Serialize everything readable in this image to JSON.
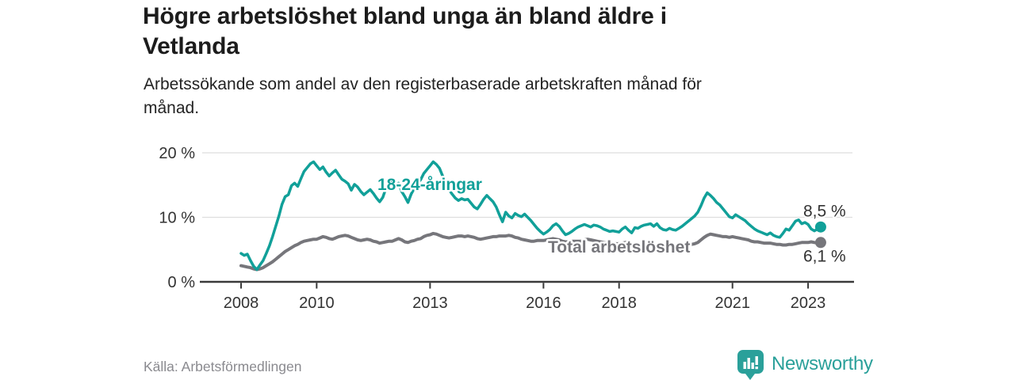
{
  "header": {
    "title": "Högre arbetslöshet bland unga än bland äldre i\nVetlanda",
    "subtitle": "Arbetssökande som andel av den registerbaserade arbetskraften månad för\nmånad."
  },
  "footer": {
    "source": "Källa: Arbetsförmedlingen",
    "brand": "Newsworthy"
  },
  "colors": {
    "young_line": "#11A099",
    "total_line": "#76767B",
    "brand_teal": "#2AA09A",
    "axis": "#3A3A3A",
    "grid": "#DEDEDE",
    "tick_text": "#333333",
    "value_label_text": "#333333",
    "source_text": "#8A8A8F",
    "title_text": "#1C1C1C"
  },
  "chart_data": {
    "type": "line",
    "title": "Högre arbetslöshet bland unga än bland äldre i Vetlanda",
    "subtitle": "Arbetssökande som andel av den registerbaserade arbetskraften månad för månad.",
    "source": "Källa: Arbetsförmedlingen",
    "x_unit": "month",
    "x_start": "2008-01",
    "x_end": "2023-05",
    "x_tick_years": [
      2008,
      2010,
      2013,
      2016,
      2018,
      2021,
      2023
    ],
    "y_ticks": [
      {
        "value": 0,
        "label": "0 %"
      },
      {
        "value": 10,
        "label": "10 %"
      },
      {
        "value": 20,
        "label": "20 %"
      }
    ],
    "ylim": [
      0,
      20
    ],
    "grid": "horizontal",
    "legend": "inline-labels",
    "series": [
      {
        "name": "18-24-åringar",
        "color": "#11A099",
        "end_value": 8.5,
        "end_label": "8,5 %",
        "values": [
          4.4,
          4.1,
          4.3,
          3.3,
          2.4,
          1.9,
          2.6,
          3.3,
          4.4,
          5.6,
          7.0,
          8.6,
          10.2,
          12.0,
          13.2,
          13.5,
          14.9,
          15.3,
          14.8,
          16.0,
          17.1,
          17.7,
          18.3,
          18.6,
          18.0,
          17.4,
          17.8,
          17.0,
          16.4,
          16.9,
          17.3,
          16.6,
          15.9,
          15.6,
          15.2,
          14.2,
          15.1,
          14.7,
          14.0,
          13.5,
          13.9,
          14.3,
          13.7,
          13.0,
          12.4,
          13.1,
          14.5,
          15.3,
          15.6,
          15.0,
          15.3,
          14.0,
          13.2,
          12.3,
          13.6,
          14.5,
          15.3,
          15.8,
          16.8,
          17.4,
          18.0,
          18.6,
          18.2,
          17.6,
          16.4,
          15.2,
          14.3,
          13.6,
          13.0,
          12.6,
          12.9,
          12.7,
          12.8,
          12.2,
          11.6,
          11.3,
          12.0,
          12.8,
          13.4,
          12.9,
          12.4,
          11.6,
          10.4,
          9.3,
          10.8,
          10.2,
          9.9,
          10.6,
          10.3,
          10.1,
          10.5,
          10.0,
          9.5,
          8.9,
          8.3,
          7.8,
          7.4,
          7.7,
          8.1,
          8.7,
          9.0,
          8.6,
          7.9,
          7.3,
          7.5,
          7.8,
          8.2,
          8.5,
          8.7,
          8.9,
          8.7,
          8.5,
          8.8,
          8.7,
          8.5,
          8.2,
          8.0,
          7.8,
          7.9,
          7.8,
          7.7,
          8.2,
          8.5,
          8.0,
          7.6,
          8.4,
          8.3,
          8.6,
          8.8,
          8.9,
          9.0,
          8.6,
          9.0,
          8.4,
          8.1,
          8.0,
          8.3,
          8.1,
          8.0,
          8.3,
          8.6,
          9.0,
          9.4,
          9.8,
          10.2,
          10.8,
          11.8,
          13.0,
          13.8,
          13.4,
          12.9,
          12.3,
          11.9,
          11.3,
          10.7,
          10.1,
          9.9,
          10.4,
          10.1,
          9.8,
          9.5,
          9.0,
          8.6,
          8.2,
          7.9,
          7.7,
          7.5,
          7.3,
          7.6,
          7.2,
          7.0,
          6.9,
          7.5,
          8.2,
          8.0,
          8.7,
          9.4,
          9.6,
          9.0,
          9.2,
          8.9,
          8.2,
          7.9,
          8.2,
          8.5
        ]
      },
      {
        "name": "Total arbetslöshet",
        "color": "#76767B",
        "end_value": 6.1,
        "end_label": "6,1 %",
        "values": [
          2.5,
          2.4,
          2.3,
          2.2,
          2.0,
          1.9,
          2.0,
          2.2,
          2.5,
          2.8,
          3.1,
          3.5,
          3.9,
          4.3,
          4.7,
          5.0,
          5.3,
          5.6,
          5.8,
          6.1,
          6.3,
          6.4,
          6.5,
          6.6,
          6.6,
          6.8,
          7.0,
          6.9,
          6.7,
          6.6,
          6.8,
          7.0,
          7.1,
          7.2,
          7.1,
          6.9,
          6.7,
          6.5,
          6.4,
          6.5,
          6.6,
          6.5,
          6.3,
          6.2,
          6.0,
          6.1,
          6.2,
          6.3,
          6.3,
          6.5,
          6.7,
          6.5,
          6.2,
          6.1,
          6.3,
          6.4,
          6.6,
          6.7,
          7.0,
          7.2,
          7.3,
          7.5,
          7.4,
          7.2,
          7.0,
          6.9,
          6.8,
          6.9,
          7.0,
          7.1,
          7.1,
          7.0,
          7.1,
          7.0,
          6.9,
          6.7,
          6.6,
          6.7,
          6.8,
          6.9,
          7.0,
          7.0,
          7.1,
          7.1,
          7.1,
          7.2,
          7.1,
          6.9,
          6.8,
          6.6,
          6.5,
          6.4,
          6.3,
          6.3,
          6.4,
          6.4,
          6.4,
          6.5,
          6.6,
          6.7,
          6.6,
          6.5,
          6.3,
          6.2,
          6.2,
          6.3,
          6.3,
          6.3,
          6.3,
          6.5,
          6.6,
          6.5,
          6.4,
          6.3,
          6.2,
          6.1,
          6.0,
          5.9,
          5.9,
          5.9,
          5.9,
          6.0,
          6.1,
          6.0,
          5.8,
          5.7,
          5.7,
          5.6,
          5.6,
          5.5,
          5.6,
          5.6,
          5.5,
          5.6,
          5.7,
          5.6,
          5.5,
          5.5,
          5.6,
          5.5,
          5.5,
          5.6,
          5.7,
          5.8,
          5.9,
          6.1,
          6.5,
          6.9,
          7.2,
          7.4,
          7.3,
          7.2,
          7.1,
          7.0,
          7.0,
          6.9,
          7.0,
          6.9,
          6.8,
          6.7,
          6.6,
          6.5,
          6.3,
          6.2,
          6.2,
          6.1,
          6.0,
          6.0,
          6.0,
          5.9,
          5.8,
          5.8,
          5.7,
          5.7,
          5.8,
          5.8,
          5.9,
          6.0,
          6.1,
          6.1,
          6.1,
          6.2,
          6.1,
          6.0,
          6.1
        ]
      }
    ]
  }
}
